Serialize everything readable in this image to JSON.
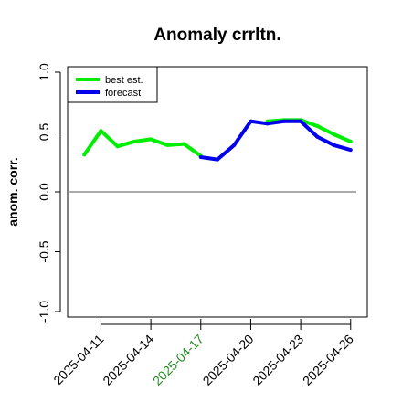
{
  "chart_data": {
    "type": "line",
    "title": "Anomaly crrltn.",
    "xlabel": "",
    "ylabel": "anom. corr.",
    "ylim": [
      -1.0,
      1.0
    ],
    "xlim": [
      "2025-04-09",
      "2025-04-27"
    ],
    "y_ticks": [
      -1.0,
      -0.5,
      0.0,
      0.5,
      1.0
    ],
    "y_tick_labels": [
      "-1.0",
      "-0.5",
      "0.0",
      "0.5",
      "1.0"
    ],
    "x_ticks": [
      "2025-04-11",
      "2025-04-14",
      "2025-04-17",
      "2025-04-20",
      "2025-04-23",
      "2025-04-26"
    ],
    "x_tick_labels": [
      "2025-04-11",
      "2025-04-14",
      "2025-04-17",
      "2025-04-20",
      "2025-04-23",
      "2025-04-26"
    ],
    "highlight_tick": "2025-04-17",
    "highlight_color": "#228b22",
    "reference_line": 0.0,
    "grid": false,
    "legend_position": "top-left",
    "x": [
      "2025-04-10",
      "2025-04-11",
      "2025-04-12",
      "2025-04-13",
      "2025-04-14",
      "2025-04-15",
      "2025-04-16",
      "2025-04-17",
      "2025-04-18",
      "2025-04-19",
      "2025-04-20",
      "2025-04-21",
      "2025-04-22",
      "2025-04-23",
      "2025-04-24",
      "2025-04-25",
      "2025-04-26"
    ],
    "series": [
      {
        "name": "best est.",
        "color": "#00ee00",
        "values": [
          0.31,
          0.51,
          0.38,
          0.42,
          0.44,
          0.39,
          0.4,
          0.3,
          null,
          null,
          null,
          0.59,
          0.6,
          0.6,
          0.55,
          0.48,
          0.42
        ]
      },
      {
        "name": "forecast",
        "color": "#0000ee",
        "values": [
          null,
          null,
          null,
          null,
          null,
          null,
          null,
          0.29,
          0.27,
          0.39,
          0.59,
          0.57,
          0.59,
          0.59,
          0.46,
          0.39,
          0.35
        ]
      }
    ]
  }
}
